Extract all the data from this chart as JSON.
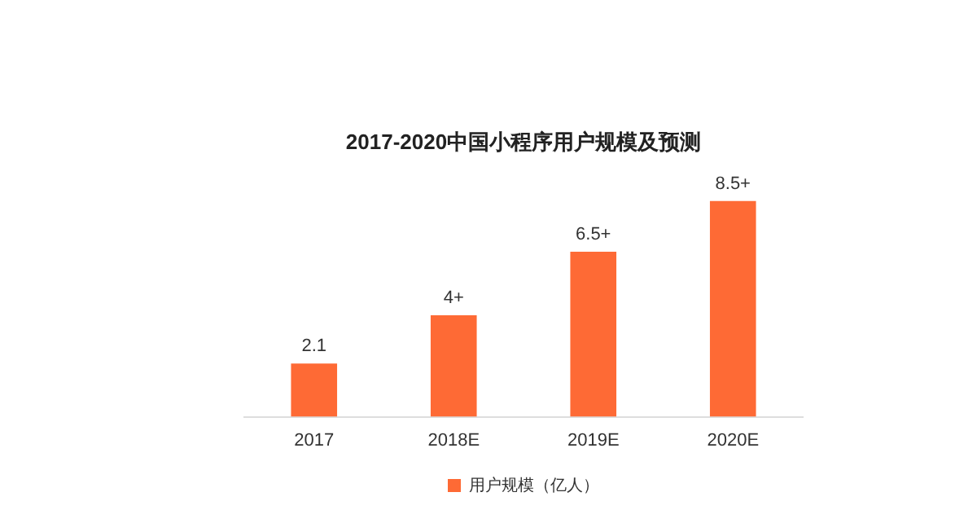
{
  "chart_data": {
    "type": "bar",
    "title": "2017-2020中国小程序用户规模及预测",
    "categories": [
      "2017",
      "2018E",
      "2019E",
      "2020E"
    ],
    "series": [
      {
        "name": "用户规模（亿人）",
        "color": "#fe6a35",
        "values": [
          2.1,
          4,
          6.5,
          8.5
        ],
        "value_labels": [
          "2.1",
          "4+",
          "6.5+",
          "8.5+"
        ]
      }
    ],
    "legend": "bottom"
  }
}
